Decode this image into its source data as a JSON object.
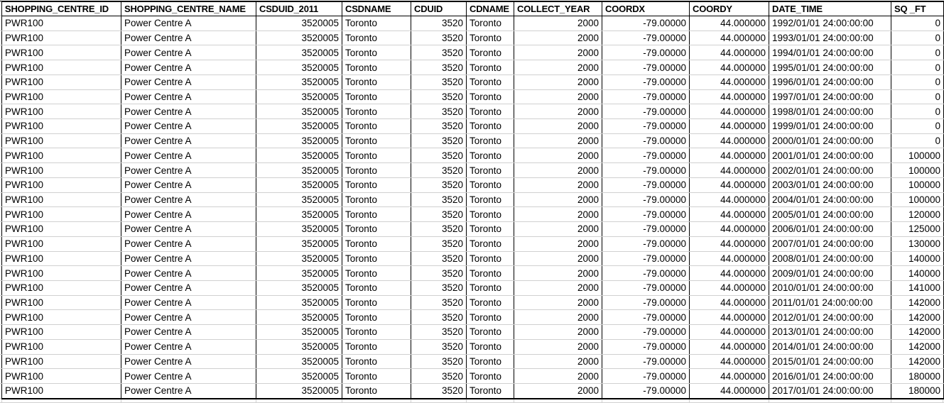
{
  "grid": {
    "columns": [
      {
        "key": "shopping-centre-id",
        "label": "SHOPPING_CENTRE_ID",
        "align": "left"
      },
      {
        "key": "shopping-centre-name",
        "label": "SHOPPING_CENTRE_NAME",
        "align": "left"
      },
      {
        "key": "csduid-2011",
        "label": "CSDUID_2011",
        "align": "right"
      },
      {
        "key": "csdname",
        "label": "CSDNAME",
        "align": "left"
      },
      {
        "key": "cduid",
        "label": "CDUID",
        "align": "right"
      },
      {
        "key": "cdname",
        "label": "CDNAME",
        "align": "left"
      },
      {
        "key": "collect-year",
        "label": "COLLECT_YEAR",
        "align": "right"
      },
      {
        "key": "coordx",
        "label": "COORDX",
        "align": "right"
      },
      {
        "key": "coordy",
        "label": "COORDY",
        "align": "right"
      },
      {
        "key": "date-time",
        "label": "DATE_TIME",
        "align": "left"
      },
      {
        "key": "sq-ft",
        "label": "SQ _FT",
        "align": "right"
      }
    ],
    "rows": [
      [
        "PWR100",
        "Power Centre A",
        "3520005",
        "Toronto",
        "3520",
        "Toronto",
        "2000",
        "-79.00000",
        "44.000000",
        "1992/01/01 24:00:00:00",
        "0"
      ],
      [
        "PWR100",
        "Power Centre A",
        "3520005",
        "Toronto",
        "3520",
        "Toronto",
        "2000",
        "-79.00000",
        "44.000000",
        "1993/01/01 24:00:00:00",
        "0"
      ],
      [
        "PWR100",
        "Power Centre A",
        "3520005",
        "Toronto",
        "3520",
        "Toronto",
        "2000",
        "-79.00000",
        "44.000000",
        "1994/01/01 24:00:00:00",
        "0"
      ],
      [
        "PWR100",
        "Power Centre A",
        "3520005",
        "Toronto",
        "3520",
        "Toronto",
        "2000",
        "-79.00000",
        "44.000000",
        "1995/01/01 24:00:00:00",
        "0"
      ],
      [
        "PWR100",
        "Power Centre A",
        "3520005",
        "Toronto",
        "3520",
        "Toronto",
        "2000",
        "-79.00000",
        "44.000000",
        "1996/01/01 24:00:00:00",
        "0"
      ],
      [
        "PWR100",
        "Power Centre A",
        "3520005",
        "Toronto",
        "3520",
        "Toronto",
        "2000",
        "-79.00000",
        "44.000000",
        "1997/01/01 24:00:00:00",
        "0"
      ],
      [
        "PWR100",
        "Power Centre A",
        "3520005",
        "Toronto",
        "3520",
        "Toronto",
        "2000",
        "-79.00000",
        "44.000000",
        "1998/01/01 24:00:00:00",
        "0"
      ],
      [
        "PWR100",
        "Power Centre A",
        "3520005",
        "Toronto",
        "3520",
        "Toronto",
        "2000",
        "-79.00000",
        "44.000000",
        "1999/01/01 24:00:00:00",
        "0"
      ],
      [
        "PWR100",
        "Power Centre A",
        "3520005",
        "Toronto",
        "3520",
        "Toronto",
        "2000",
        "-79.00000",
        "44.000000",
        "2000/01/01 24:00:00:00",
        "0"
      ],
      [
        "PWR100",
        "Power Centre A",
        "3520005",
        "Toronto",
        "3520",
        "Toronto",
        "2000",
        "-79.00000",
        "44.000000",
        "2001/01/01 24:00:00:00",
        "100000"
      ],
      [
        "PWR100",
        "Power Centre A",
        "3520005",
        "Toronto",
        "3520",
        "Toronto",
        "2000",
        "-79.00000",
        "44.000000",
        "2002/01/01 24:00:00:00",
        "100000"
      ],
      [
        "PWR100",
        "Power Centre A",
        "3520005",
        "Toronto",
        "3520",
        "Toronto",
        "2000",
        "-79.00000",
        "44.000000",
        "2003/01/01 24:00:00:00",
        "100000"
      ],
      [
        "PWR100",
        "Power Centre A",
        "3520005",
        "Toronto",
        "3520",
        "Toronto",
        "2000",
        "-79.00000",
        "44.000000",
        "2004/01/01 24:00:00:00",
        "100000"
      ],
      [
        "PWR100",
        "Power Centre A",
        "3520005",
        "Toronto",
        "3520",
        "Toronto",
        "2000",
        "-79.00000",
        "44.000000",
        "2005/01/01 24:00:00:00",
        "120000"
      ],
      [
        "PWR100",
        "Power Centre A",
        "3520005",
        "Toronto",
        "3520",
        "Toronto",
        "2000",
        "-79.00000",
        "44.000000",
        "2006/01/01 24:00:00:00",
        "125000"
      ],
      [
        "PWR100",
        "Power Centre A",
        "3520005",
        "Toronto",
        "3520",
        "Toronto",
        "2000",
        "-79.00000",
        "44.000000",
        "2007/01/01 24:00:00:00",
        "130000"
      ],
      [
        "PWR100",
        "Power Centre A",
        "3520005",
        "Toronto",
        "3520",
        "Toronto",
        "2000",
        "-79.00000",
        "44.000000",
        "2008/01/01 24:00:00:00",
        "140000"
      ],
      [
        "PWR100",
        "Power Centre A",
        "3520005",
        "Toronto",
        "3520",
        "Toronto",
        "2000",
        "-79.00000",
        "44.000000",
        "2009/01/01 24:00:00:00",
        "140000"
      ],
      [
        "PWR100",
        "Power Centre A",
        "3520005",
        "Toronto",
        "3520",
        "Toronto",
        "2000",
        "-79.00000",
        "44.000000",
        "2010/01/01 24:00:00:00",
        "141000"
      ],
      [
        "PWR100",
        "Power Centre A",
        "3520005",
        "Toronto",
        "3520",
        "Toronto",
        "2000",
        "-79.00000",
        "44.000000",
        "2011/01/01 24:00:00:00",
        "142000"
      ],
      [
        "PWR100",
        "Power Centre A",
        "3520005",
        "Toronto",
        "3520",
        "Toronto",
        "2000",
        "-79.00000",
        "44.000000",
        "2012/01/01 24:00:00:00",
        "142000"
      ],
      [
        "PWR100",
        "Power Centre A",
        "3520005",
        "Toronto",
        "3520",
        "Toronto",
        "2000",
        "-79.00000",
        "44.000000",
        "2013/01/01 24:00:00:00",
        "142000"
      ],
      [
        "PWR100",
        "Power Centre A",
        "3520005",
        "Toronto",
        "3520",
        "Toronto",
        "2000",
        "-79.00000",
        "44.000000",
        "2014/01/01 24:00:00:00",
        "142000"
      ],
      [
        "PWR100",
        "Power Centre A",
        "3520005",
        "Toronto",
        "3520",
        "Toronto",
        "2000",
        "-79.00000",
        "44.000000",
        "2015/01/01 24:00:00:00",
        "142000"
      ],
      [
        "PWR100",
        "Power Centre A",
        "3520005",
        "Toronto",
        "3520",
        "Toronto",
        "2000",
        "-79.00000",
        "44.000000",
        "2016/01/01 24:00:00:00",
        "180000"
      ],
      [
        "PWR100",
        "Power Centre A",
        "3520005",
        "Toronto",
        "3520",
        "Toronto",
        "2000",
        "-79.00000",
        "44.000000",
        "2017/01/01 24:00:00:00",
        "180000"
      ]
    ]
  },
  "colors": {
    "border": "#000000",
    "gridline": "#d0d0d0",
    "background": "#ffffff",
    "text": "#000000"
  }
}
